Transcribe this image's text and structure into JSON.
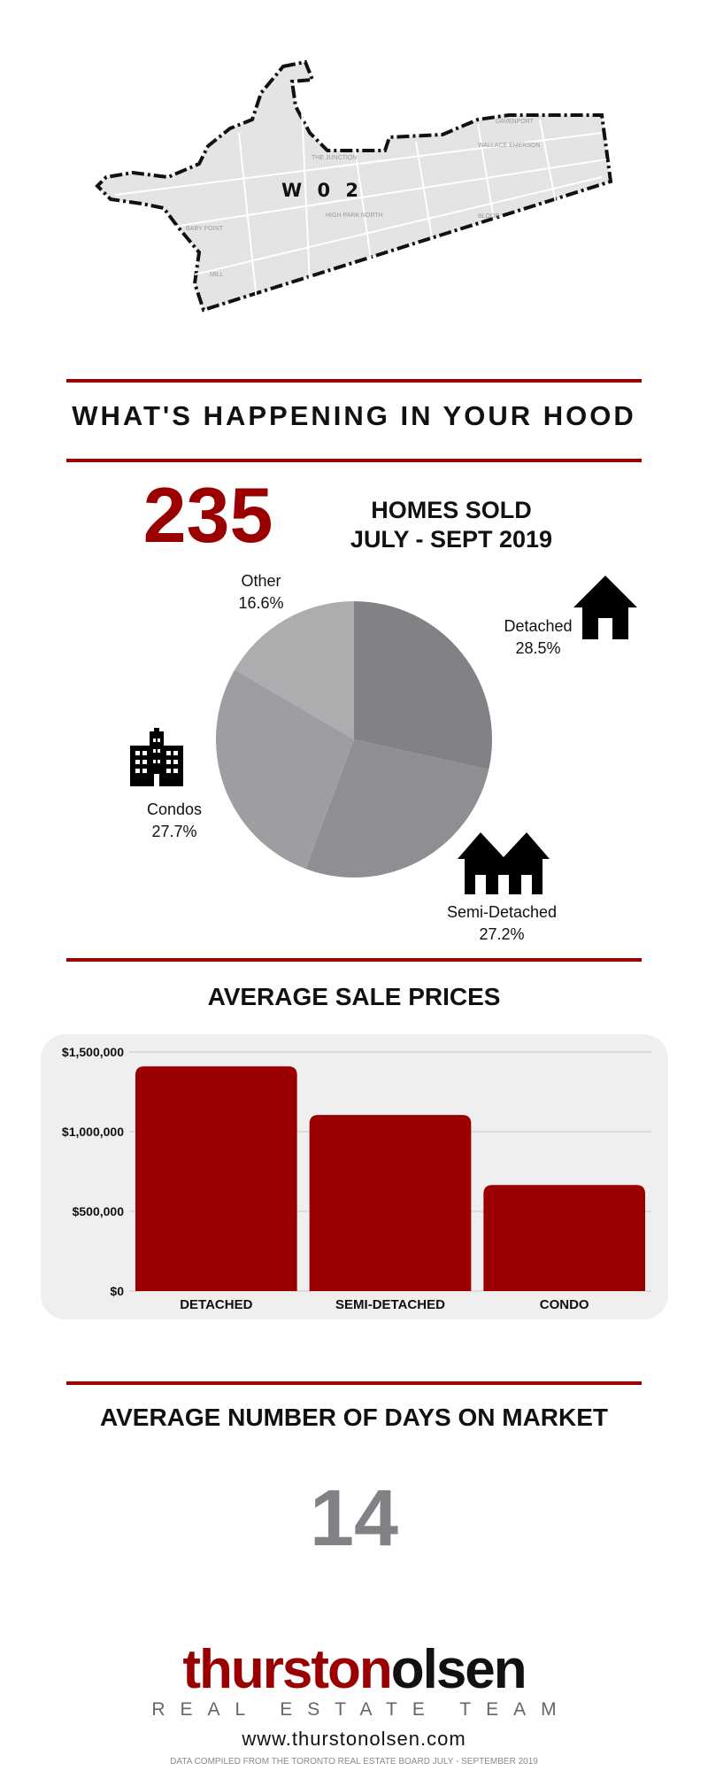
{
  "map": {
    "district": "W 0 2",
    "place_labels": [
      "THE JUNCTION",
      "HIGH PARK NORTH",
      "BABY POINT",
      "WALLACE EMERSON",
      "DAVENPORT",
      "BLOOR",
      "MILL"
    ]
  },
  "headline": "WHAT'S HAPPENING IN YOUR HOOD",
  "homes_sold": {
    "count": "235",
    "label_line1": "HOMES SOLD",
    "label_line2": "JULY - SEPT 2019"
  },
  "pie_labels": {
    "detached": {
      "name": "Detached",
      "pct": "28.5%"
    },
    "semi": {
      "name": "Semi-Detached",
      "pct": "27.2%"
    },
    "condos": {
      "name": "Condos",
      "pct": "27.7%"
    },
    "other": {
      "name": "Other",
      "pct": "16.6%"
    }
  },
  "price_title": "AVERAGE SALE PRICES",
  "dom": {
    "title": "AVERAGE NUMBER OF DAYS ON MARKET",
    "value": "14"
  },
  "footer": {
    "logo_part1": "thurston",
    "logo_part2": "olsen",
    "logo_sub": "REAL ESTATE TEAM",
    "website": "www.thurstonolsen.com",
    "source": "DATA COMPILED FROM THE TORONTO REAL ESTATE BOARD JULY - SEPTEMBER 2019"
  },
  "icons": {
    "detached": "house-icon",
    "semi": "semi-detached-house-icon",
    "condos": "condo-building-icon"
  },
  "colors": {
    "accent": "#9b0000",
    "gray_number": "#808285",
    "panel_bg": "#efefef"
  },
  "chart_data": [
    {
      "type": "pie",
      "categories": [
        "Detached",
        "Semi-Detached",
        "Condos",
        "Other"
      ],
      "values": [
        28.5,
        27.2,
        27.7,
        16.6
      ],
      "colors": [
        "#808285",
        "#8e8f93",
        "#9d9ea2",
        "#adacaf"
      ],
      "start_angle_deg": 0,
      "direction": "clockwise"
    },
    {
      "type": "bar",
      "title": "AVERAGE SALE PRICES",
      "categories": [
        "DETACHED",
        "SEMI-DETACHED",
        "CONDO"
      ],
      "values": [
        1410000,
        1105000,
        665000
      ],
      "ylim": [
        0,
        1500000
      ],
      "yticks": [
        0,
        500000,
        1000000,
        1500000
      ],
      "ytick_labels": [
        "$0",
        "$500,000",
        "$1,000,000",
        "$1,500,000"
      ],
      "bar_color": "#9b0000",
      "grid": true
    }
  ]
}
